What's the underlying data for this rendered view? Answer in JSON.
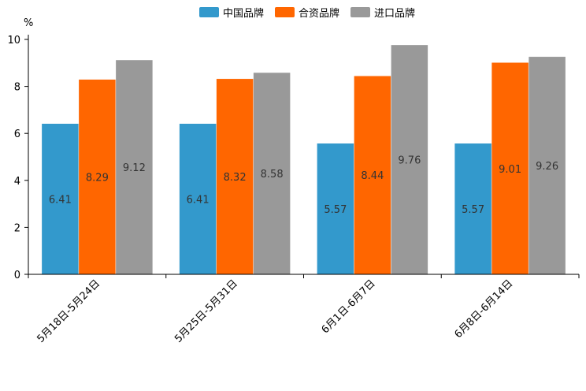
{
  "chart_data": {
    "type": "bar",
    "title": "",
    "xlabel": "",
    "ylabel": "%",
    "ylim": [
      0,
      10
    ],
    "yticks": [
      0,
      2,
      4,
      6,
      8,
      10
    ],
    "legend_position": "top-center",
    "grid": false,
    "categories": [
      "5月18日-5月24日",
      "5月25日-5月31日",
      "6月1日-6月7日",
      "6月8日-6月14日"
    ],
    "series": [
      {
        "name": "中国品牌",
        "color": "#3399cc",
        "values": [
          6.41,
          6.41,
          5.57,
          5.57
        ]
      },
      {
        "name": "合资品牌",
        "color": "#ff6600",
        "values": [
          8.29,
          8.32,
          8.44,
          9.01
        ]
      },
      {
        "name": "进口品牌",
        "color": "#999999",
        "values": [
          9.12,
          8.58,
          9.76,
          9.26
        ]
      }
    ]
  }
}
